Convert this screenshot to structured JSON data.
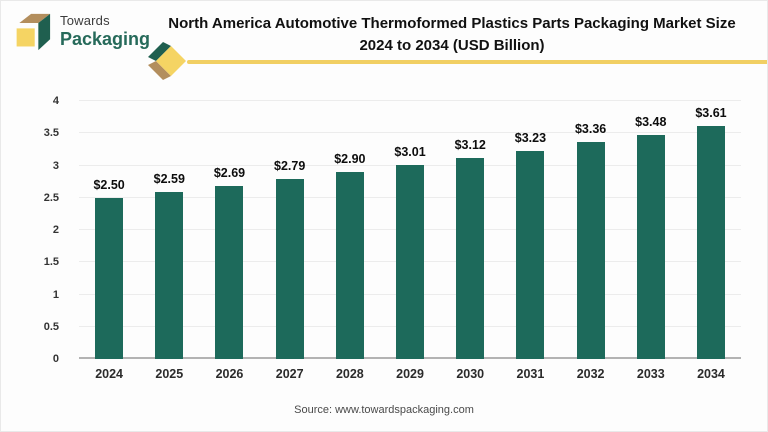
{
  "logo": {
    "line1": "Towards",
    "line2": "Packaging",
    "colors": {
      "green": "#1f5f4f",
      "yellow": "#f5d463",
      "tan": "#b38e5d"
    }
  },
  "header": {
    "title": "North America Automotive Thermoformed Plastics Parts Packaging Market Size 2024 to 2034 (USD Billion)"
  },
  "chart_data": {
    "type": "bar",
    "title": "North America Automotive Thermoformed Plastics Parts Packaging Market Size 2024 to 2034 (USD Billion)",
    "categories": [
      "2024",
      "2025",
      "2026",
      "2027",
      "2028",
      "2029",
      "2030",
      "2031",
      "2032",
      "2033",
      "2034"
    ],
    "values": [
      2.5,
      2.59,
      2.69,
      2.79,
      2.9,
      3.01,
      3.12,
      3.23,
      3.36,
      3.48,
      3.61
    ],
    "labels": [
      "$2.50",
      "$2.59",
      "$2.69",
      "$2.79",
      "$2.90",
      "$3.01",
      "$3.12",
      "$3.23",
      "$3.36",
      "$3.48",
      "$3.61"
    ],
    "xlabel": "",
    "ylabel": "",
    "ylim": [
      0,
      4
    ],
    "yticks": [
      "0",
      "0.5",
      "1",
      "1.5",
      "2",
      "2.5",
      "3",
      "3.5",
      "4"
    ],
    "grid": true,
    "legend": false,
    "bar_color": "#1d6a5b",
    "units": "USD Billion"
  },
  "footer": {
    "source": "Source: www.towardspackaging.com"
  },
  "colors": {
    "accent_yellow": "#f1cf63",
    "bar_teal": "#1d6a5b",
    "logo_green": "#266a5a"
  }
}
